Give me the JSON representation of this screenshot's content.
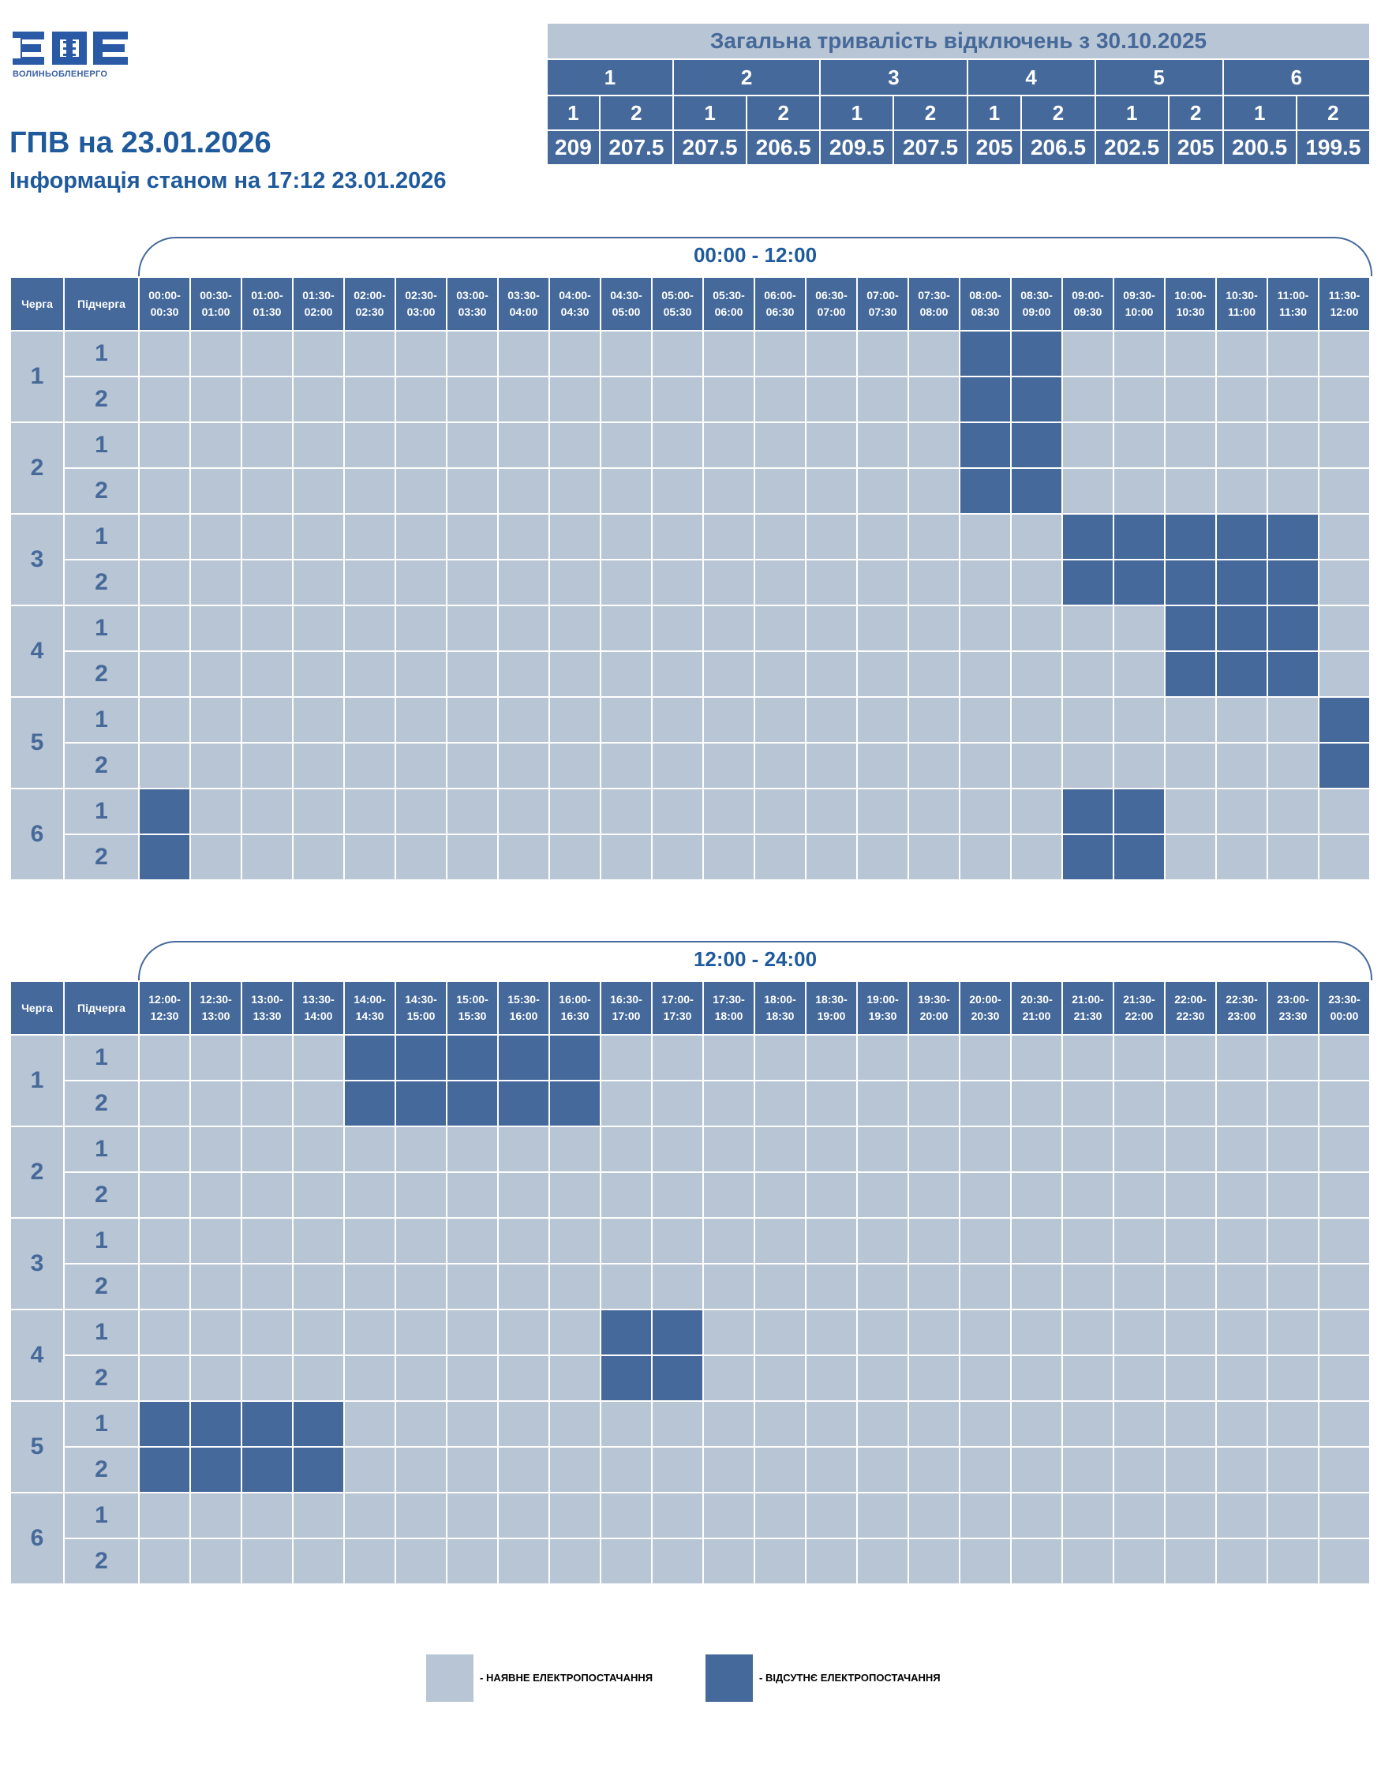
{
  "logo": {
    "letters": "ВОЕ",
    "subtitle": "ВОЛИНЬОБЛЕНЕРГО"
  },
  "header": {
    "title": "ГПВ на 23.01.2026",
    "subtitle": "Інформація станом на 17:12 23.01.2026"
  },
  "summary": {
    "title": "Загальна тривалість відключень з 30.10.2025",
    "queues": [
      "1",
      "2",
      "3",
      "4",
      "5",
      "6"
    ],
    "subqueues": [
      "1",
      "2",
      "1",
      "2",
      "1",
      "2",
      "1",
      "2",
      "1",
      "2",
      "1",
      "2"
    ],
    "values": [
      "209",
      "207.5",
      "207.5",
      "206.5",
      "209.5",
      "207.5",
      "205",
      "206.5",
      "202.5",
      "205",
      "200.5",
      "199.5"
    ]
  },
  "columns": {
    "queue": "Черга",
    "subqueue": "Підчерга"
  },
  "sections": [
    {
      "range_label": "00:00 - 12:00",
      "times": [
        "00:00-00:30",
        "00:30-01:00",
        "01:00-01:30",
        "01:30-02:00",
        "02:00-02:30",
        "02:30-03:00",
        "03:00-03:30",
        "03:30-04:00",
        "04:00-04:30",
        "04:30-05:00",
        "05:00-05:30",
        "05:30-06:00",
        "06:00-06:30",
        "06:30-07:00",
        "07:00-07:30",
        "07:30-08:00",
        "08:00-08:30",
        "08:30-09:00",
        "09:00-09:30",
        "09:30-10:00",
        "10:00-10:30",
        "10:30-11:00",
        "11:00-11:30",
        "11:30-12:00"
      ],
      "rows": [
        {
          "queue": "1",
          "sub": "1",
          "off": [
            16,
            17
          ]
        },
        {
          "queue": "1",
          "sub": "2",
          "off": [
            16,
            17
          ]
        },
        {
          "queue": "2",
          "sub": "1",
          "off": [
            16,
            17
          ]
        },
        {
          "queue": "2",
          "sub": "2",
          "off": [
            16,
            17
          ]
        },
        {
          "queue": "3",
          "sub": "1",
          "off": [
            18,
            19,
            20,
            21,
            22
          ]
        },
        {
          "queue": "3",
          "sub": "2",
          "off": [
            18,
            19,
            20,
            21,
            22
          ]
        },
        {
          "queue": "4",
          "sub": "1",
          "off": [
            20,
            21,
            22
          ]
        },
        {
          "queue": "4",
          "sub": "2",
          "off": [
            20,
            21,
            22
          ]
        },
        {
          "queue": "5",
          "sub": "1",
          "off": [
            23
          ]
        },
        {
          "queue": "5",
          "sub": "2",
          "off": [
            23
          ]
        },
        {
          "queue": "6",
          "sub": "1",
          "off": [
            0,
            18,
            19
          ]
        },
        {
          "queue": "6",
          "sub": "2",
          "off": [
            0,
            18,
            19
          ]
        }
      ]
    },
    {
      "range_label": "12:00 - 24:00",
      "times": [
        "12:00-12:30",
        "12:30-13:00",
        "13:00-13:30",
        "13:30-14:00",
        "14:00-14:30",
        "14:30-15:00",
        "15:00-15:30",
        "15:30-16:00",
        "16:00-16:30",
        "16:30-17:00",
        "17:00-17:30",
        "17:30-18:00",
        "18:00-18:30",
        "18:30-19:00",
        "19:00-19:30",
        "19:30-20:00",
        "20:00-20:30",
        "20:30-21:00",
        "21:00-21:30",
        "21:30-22:00",
        "22:00-22:30",
        "22:30-23:00",
        "23:00-23:30",
        "23:30-00:00"
      ],
      "rows": [
        {
          "queue": "1",
          "sub": "1",
          "off": [
            4,
            5,
            6,
            7,
            8
          ]
        },
        {
          "queue": "1",
          "sub": "2",
          "off": [
            4,
            5,
            6,
            7,
            8
          ]
        },
        {
          "queue": "2",
          "sub": "1",
          "off": []
        },
        {
          "queue": "2",
          "sub": "2",
          "off": []
        },
        {
          "queue": "3",
          "sub": "1",
          "off": []
        },
        {
          "queue": "3",
          "sub": "2",
          "off": []
        },
        {
          "queue": "4",
          "sub": "1",
          "off": [
            9,
            10
          ]
        },
        {
          "queue": "4",
          "sub": "2",
          "off": [
            9,
            10
          ]
        },
        {
          "queue": "5",
          "sub": "1",
          "off": [
            0,
            1,
            2,
            3
          ]
        },
        {
          "queue": "5",
          "sub": "2",
          "off": [
            0,
            1,
            2,
            3
          ]
        },
        {
          "queue": "6",
          "sub": "1",
          "off": []
        },
        {
          "queue": "6",
          "sub": "2",
          "off": []
        }
      ]
    }
  ],
  "legend": {
    "available": "- НАЯВНЕ ЕЛЕКТРОПОСТАЧАННЯ",
    "unavailable": "- ВІДСУТНЄ ЕЛЕКТРОПОСТАЧАННЯ"
  },
  "colors": {
    "on": "#b8c5d4",
    "off": "#45699b",
    "brand": "#1f5a9c"
  }
}
